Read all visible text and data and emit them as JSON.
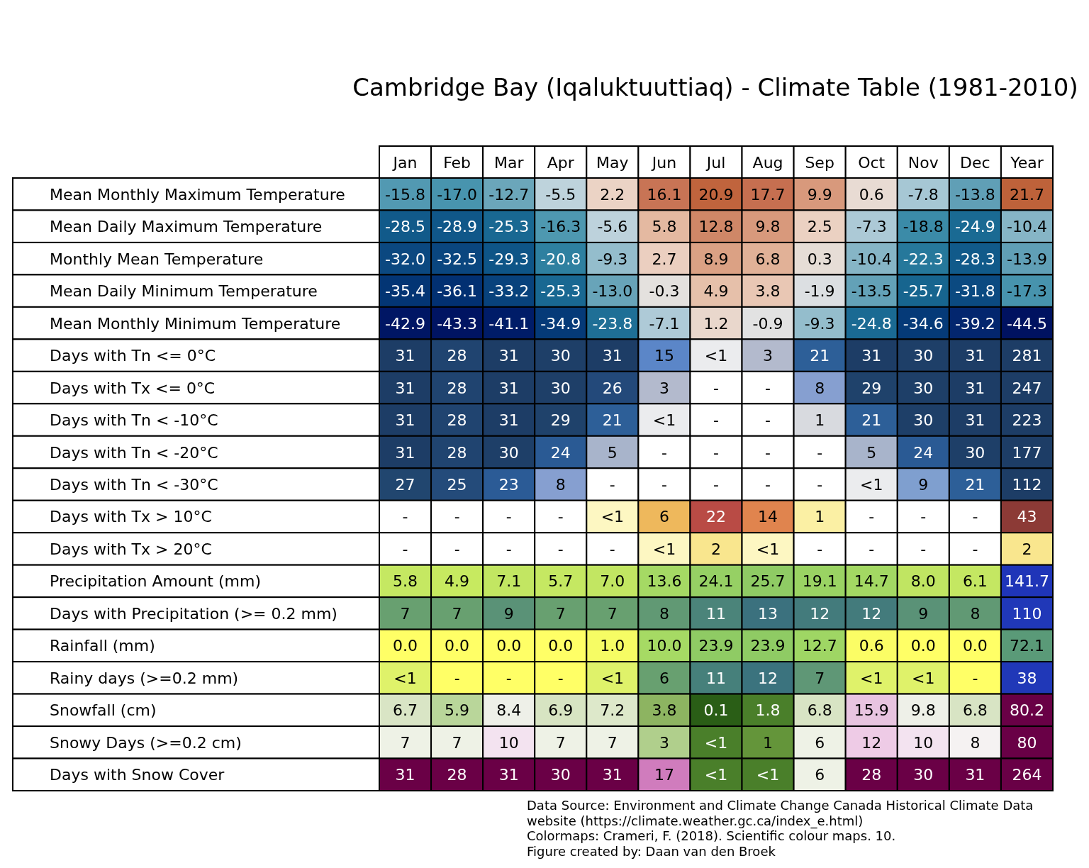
{
  "chart_data": {
    "type": "heatmap",
    "title": "Cambridge Bay (Iqaluktuuttiaq) - Climate Table (1981-2010)",
    "categories": [
      "Jan",
      "Feb",
      "Mar",
      "Apr",
      "May",
      "Jun",
      "Jul",
      "Aug",
      "Sep",
      "Oct",
      "Nov",
      "Dec",
      "Year"
    ],
    "y_categories": [
      "Mean Monthly Maximum Temperature",
      "Mean Daily Maximum Temperature",
      "Monthly Mean Temperature",
      "Mean Daily Minimum Temperature",
      "Mean Monthly Minimum Temperature",
      "Days with Tn <= 0°C",
      "Days with Tx <= 0°C",
      "Days with Tn < -10°C",
      "Days with Tn < -20°C",
      "Days with Tn < -30°C",
      "Days with Tx > 10°C",
      "Days with Tx > 20°C",
      "Precipitation Amount (mm)",
      "Days with Precipitation (>= 0.2 mm)",
      "Rainfall (mm)",
      "Rainy days (>=0.2 mm)",
      "Snowfall (cm)",
      "Snowy Days (>=0.2 cm)",
      "Days with Snow Cover"
    ],
    "cells": [
      [
        -15.8,
        -17.0,
        -12.7,
        -5.5,
        2.2,
        16.1,
        20.9,
        17.7,
        9.9,
        0.6,
        -7.8,
        -13.8,
        21.7
      ],
      [
        -28.5,
        -28.9,
        -25.3,
        -16.3,
        -5.6,
        5.8,
        12.8,
        9.8,
        2.5,
        -7.3,
        -18.8,
        -24.9,
        -10.4
      ],
      [
        -32.0,
        -32.5,
        -29.3,
        -20.8,
        -9.3,
        2.7,
        8.9,
        6.8,
        0.3,
        -10.4,
        -22.3,
        -28.3,
        -13.9
      ],
      [
        -35.4,
        -36.1,
        -33.2,
        -25.3,
        -13.0,
        -0.3,
        4.9,
        3.8,
        -1.9,
        -13.5,
        -25.7,
        -31.8,
        -17.3
      ],
      [
        -42.9,
        -43.3,
        -41.1,
        -34.9,
        -23.8,
        -7.1,
        1.2,
        -0.9,
        -9.3,
        -24.8,
        -34.6,
        -39.2,
        -44.5
      ],
      [
        31,
        28,
        31,
        30,
        31,
        15,
        null,
        3,
        21,
        31,
        30,
        31,
        281
      ],
      [
        31,
        28,
        31,
        30,
        26,
        3,
        null,
        null,
        8,
        29,
        30,
        31,
        247
      ],
      [
        31,
        28,
        31,
        29,
        21,
        null,
        null,
        null,
        1,
        21,
        30,
        31,
        223
      ],
      [
        31,
        28,
        30,
        24,
        5,
        null,
        null,
        null,
        null,
        5,
        24,
        30,
        177
      ],
      [
        27,
        25,
        23,
        8,
        null,
        null,
        null,
        null,
        null,
        null,
        9,
        21,
        112
      ],
      [
        null,
        null,
        null,
        null,
        null,
        6,
        22,
        14,
        1,
        null,
        null,
        null,
        43
      ],
      [
        null,
        null,
        null,
        null,
        null,
        null,
        2,
        null,
        null,
        null,
        null,
        null,
        2
      ],
      [
        5.8,
        4.9,
        7.1,
        5.7,
        7.0,
        13.6,
        24.1,
        25.7,
        19.1,
        14.7,
        8.0,
        6.1,
        141.7
      ],
      [
        7,
        7,
        9,
        7,
        7,
        8,
        11,
        13,
        12,
        12,
        9,
        8,
        110
      ],
      [
        0.0,
        0.0,
        0.0,
        0.0,
        1.0,
        10.0,
        23.9,
        23.9,
        12.7,
        0.6,
        0.0,
        0.0,
        72.1
      ],
      [
        null,
        null,
        null,
        null,
        null,
        6,
        11,
        12,
        7,
        null,
        null,
        null,
        38
      ],
      [
        6.7,
        5.9,
        8.4,
        6.9,
        7.2,
        3.8,
        0.1,
        1.8,
        6.8,
        15.9,
        9.8,
        6.8,
        80.2
      ],
      [
        7,
        7,
        10,
        7,
        7,
        3,
        null,
        1,
        6,
        12,
        10,
        8,
        80
      ],
      [
        31,
        28,
        31,
        30,
        31,
        17,
        null,
        null,
        6,
        28,
        30,
        31,
        264
      ]
    ],
    "cell_labels": [
      [
        "-15.8",
        "-17.0",
        "-12.7",
        "-5.5",
        "2.2",
        "16.1",
        "20.9",
        "17.7",
        "9.9",
        "0.6",
        "-7.8",
        "-13.8",
        "21.7"
      ],
      [
        "-28.5",
        "-28.9",
        "-25.3",
        "-16.3",
        "-5.6",
        "5.8",
        "12.8",
        "9.8",
        "2.5",
        "-7.3",
        "-18.8",
        "-24.9",
        "-10.4"
      ],
      [
        "-32.0",
        "-32.5",
        "-29.3",
        "-20.8",
        "-9.3",
        "2.7",
        "8.9",
        "6.8",
        "0.3",
        "-10.4",
        "-22.3",
        "-28.3",
        "-13.9"
      ],
      [
        "-35.4",
        "-36.1",
        "-33.2",
        "-25.3",
        "-13.0",
        "-0.3",
        "4.9",
        "3.8",
        "-1.9",
        "-13.5",
        "-25.7",
        "-31.8",
        "-17.3"
      ],
      [
        "-42.9",
        "-43.3",
        "-41.1",
        "-34.9",
        "-23.8",
        "-7.1",
        "1.2",
        "-0.9",
        "-9.3",
        "-24.8",
        "-34.6",
        "-39.2",
        "-44.5"
      ],
      [
        "31",
        "28",
        "31",
        "30",
        "31",
        "15",
        "<1",
        "3",
        "21",
        "31",
        "30",
        "31",
        "281"
      ],
      [
        "31",
        "28",
        "31",
        "30",
        "26",
        "3",
        "-",
        "-",
        "8",
        "29",
        "30",
        "31",
        "247"
      ],
      [
        "31",
        "28",
        "31",
        "29",
        "21",
        "<1",
        "-",
        "-",
        "1",
        "21",
        "30",
        "31",
        "223"
      ],
      [
        "31",
        "28",
        "30",
        "24",
        "5",
        "-",
        "-",
        "-",
        "-",
        "5",
        "24",
        "30",
        "177"
      ],
      [
        "27",
        "25",
        "23",
        "8",
        "-",
        "-",
        "-",
        "-",
        "-",
        "<1",
        "9",
        "21",
        "112"
      ],
      [
        "-",
        "-",
        "-",
        "-",
        "<1",
        "6",
        "22",
        "14",
        "1",
        "-",
        "-",
        "-",
        "43"
      ],
      [
        "-",
        "-",
        "-",
        "-",
        "-",
        "<1",
        "2",
        "<1",
        "-",
        "-",
        "-",
        "-",
        "2"
      ],
      [
        "5.8",
        "4.9",
        "7.1",
        "5.7",
        "7.0",
        "13.6",
        "24.1",
        "25.7",
        "19.1",
        "14.7",
        "8.0",
        "6.1",
        "141.7"
      ],
      [
        "7",
        "7",
        "9",
        "7",
        "7",
        "8",
        "11",
        "13",
        "12",
        "12",
        "9",
        "8",
        "110"
      ],
      [
        "0.0",
        "0.0",
        "0.0",
        "0.0",
        "1.0",
        "10.0",
        "23.9",
        "23.9",
        "12.7",
        "0.6",
        "0.0",
        "0.0",
        "72.1"
      ],
      [
        "<1",
        "-",
        "-",
        "-",
        "<1",
        "6",
        "11",
        "12",
        "7",
        "<1",
        "<1",
        "-",
        "38"
      ],
      [
        "6.7",
        "5.9",
        "8.4",
        "6.9",
        "7.2",
        "3.8",
        "0.1",
        "1.8",
        "6.8",
        "15.9",
        "9.8",
        "6.8",
        "80.2"
      ],
      [
        "7",
        "7",
        "10",
        "7",
        "7",
        "3",
        "<1",
        "1",
        "6",
        "12",
        "10",
        "8",
        "80"
      ],
      [
        "31",
        "28",
        "31",
        "30",
        "31",
        "17",
        "<1",
        "<1",
        "6",
        "28",
        "30",
        "31",
        "264"
      ]
    ],
    "colors": [
      [
        "#5299b2",
        "#4894ae",
        "#6ba6ba",
        "#bed3dc",
        "#ebd3c5",
        "#c87455",
        "#c0643d",
        "#c66f50",
        "#d8997c",
        "#e8dbd3",
        "#a6c7d4",
        "#609fb6",
        "#be623a"
      ],
      [
        "#115a8a",
        "#105789",
        "#196892",
        "#4e98b0",
        "#bdd2dc",
        "#e4b9a1",
        "#cf8767",
        "#d8997c",
        "#ebd1c2",
        "#acc9d6",
        "#3b8ba8",
        "#1a6a93",
        "#86b5c6"
      ],
      [
        "#0b4880",
        "#0a467f",
        "#0e5587",
        "#2e80a0",
        "#94bdcc",
        "#ebcfc0",
        "#dba184",
        "#e1b197",
        "#e6ddd6",
        "#86b5c6",
        "#26789b",
        "#115a8a",
        "#609fb6"
      ],
      [
        "#033574",
        "#023072",
        "#08427c",
        "#196892",
        "#68a4b9",
        "#e4e1de",
        "#e6c0aa",
        "#e9c7b4",
        "#dcdfe2",
        "#63a1b7",
        "#17658f",
        "#0b4a81",
        "#4793ad"
      ],
      [
        "#001664",
        "#001462",
        "#001c68",
        "#053a78",
        "#1f6f96",
        "#aecad7",
        "#e9d7cc",
        "#e2e2e2",
        "#94bdcc",
        "#1a6a93",
        "#053a78",
        "#03266e",
        "#001260"
      ],
      [
        "#1d3d66",
        "#204470",
        "#1d3d66",
        "#1e3f68",
        "#1d3d66",
        "#5b86c8",
        "#ebecee",
        "#b3bacd",
        "#2d5f98",
        "#1d3d66",
        "#1e3f68",
        "#1d3d66",
        "#1d3d66"
      ],
      [
        "#1d3d66",
        "#204470",
        "#1d3d66",
        "#1e3f68",
        "#23497a",
        "#b3bacd",
        "#ffffff",
        "#ffffff",
        "#869fd0",
        "#1f426b",
        "#1e3f68",
        "#1d3d66",
        "#1d3d66"
      ],
      [
        "#1d3d66",
        "#204470",
        "#1d3d66",
        "#1f426b",
        "#2d5f98",
        "#ebecee",
        "#ffffff",
        "#ffffff",
        "#d8dadf",
        "#2d5f98",
        "#1e3f68",
        "#1d3d66",
        "#1d3d66"
      ],
      [
        "#1d3d66",
        "#204470",
        "#1e3f68",
        "#2a5a94",
        "#a8b4cb",
        "#ffffff",
        "#ffffff",
        "#ffffff",
        "#ffffff",
        "#a8b4cb",
        "#2a5a94",
        "#1e3f68",
        "#1d3d66"
      ],
      [
        "#21466f",
        "#244b7a",
        "#2b5b96",
        "#869fd0",
        "#ffffff",
        "#ffffff",
        "#ffffff",
        "#ffffff",
        "#ffffff",
        "#ebecee",
        "#7f9fcf",
        "#2d5f98",
        "#1d3d66"
      ],
      [
        "#ffffff",
        "#ffffff",
        "#ffffff",
        "#ffffff",
        "#fdf7c2",
        "#eeb85c",
        "#b94b45",
        "#e0844e",
        "#fbf0a4",
        "#ffffff",
        "#ffffff",
        "#ffffff",
        "#8c3a36"
      ],
      [
        "#ffffff",
        "#ffffff",
        "#ffffff",
        "#ffffff",
        "#ffffff",
        "#fdf7c2",
        "#f9e68e",
        "#fdf7c2",
        "#ffffff",
        "#ffffff",
        "#ffffff",
        "#ffffff",
        "#f9e68e"
      ],
      [
        "#c5e862",
        "#c7ea60",
        "#c2e662",
        "#c5e862",
        "#c2e662",
        "#a5d964",
        "#96d064",
        "#8fcb64",
        "#9ad363",
        "#a3d863",
        "#c0e562",
        "#c4e762",
        "#1f35b8"
      ],
      [
        "#68a070",
        "#68a070",
        "#5a9277",
        "#68a070",
        "#68a070",
        "#619974",
        "#4b847a",
        "#3b717e",
        "#437b7c",
        "#437b7c",
        "#5a9277",
        "#619974",
        "#2038b8"
      ],
      [
        "#ffff66",
        "#ffff66",
        "#ffff66",
        "#ffff66",
        "#f6fc64",
        "#a6da64",
        "#8fcb64",
        "#8fcb64",
        "#9fd664",
        "#fbfd65",
        "#ffff66",
        "#ffff66",
        "#5a9a78"
      ],
      [
        "#dff26a",
        "#ffff66",
        "#ffff66",
        "#ffff66",
        "#dff26a",
        "#68a070",
        "#46807b",
        "#3b737e",
        "#5f9776",
        "#dff26a",
        "#dff26a",
        "#ffff66",
        "#2038b8"
      ],
      [
        "#d9e5c5",
        "#b9d69a",
        "#eef0e8",
        "#d7e4c2",
        "#dde8ca",
        "#8db461",
        "#2a5e16",
        "#4a7f2a",
        "#d8e4c4",
        "#e8c4e0",
        "#eef0e8",
        "#d8e4c4",
        "#690046"
      ],
      [
        "#eef2e6",
        "#eef2e6",
        "#f3e3f0",
        "#eef2e6",
        "#eef2e6",
        "#b0cf8c",
        "#4a7f2a",
        "#64953a",
        "#eef2e6",
        "#eecbe6",
        "#f3e3f0",
        "#f5f2f2",
        "#690046"
      ],
      [
        "#6a0046",
        "#6a0046",
        "#6a0046",
        "#6a0046",
        "#6a0046",
        "#d07cbd",
        "#4a7f2a",
        "#4a7f2a",
        "#eef2e6",
        "#6a0046",
        "#6a0046",
        "#6a0046",
        "#690046"
      ]
    ],
    "annotations": [
      "Data Source: Environment and Climate Change Canada Historical Climate Data",
      "website (https://climate.weather.gc.ca/index_e.html)",
      "Colormaps: Crameri, F. (2018). Scientific colour maps. 10.",
      "Figure created by: Daan van den Broek"
    ]
  }
}
